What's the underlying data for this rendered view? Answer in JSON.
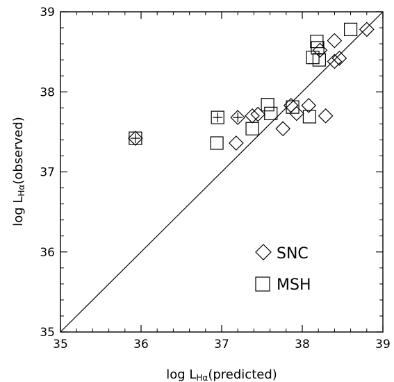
{
  "chart_data": {
    "type": "scatter",
    "title": "",
    "xlabel": {
      "prefix": "log L",
      "sub": "Hα",
      "suffix": "(predicted)"
    },
    "ylabel": {
      "prefix": "log L",
      "sub": "Hα",
      "suffix": "(observed)"
    },
    "xlim": [
      35,
      39
    ],
    "ylim": [
      35,
      39
    ],
    "x_ticks": [
      "35",
      "36",
      "37",
      "38",
      "39"
    ],
    "y_ticks": [
      "35",
      "36",
      "37",
      "38",
      "39"
    ],
    "reference_line": "y = x",
    "legend_placement": "lower-right",
    "series": [
      {
        "name": "SNC",
        "marker": "diamond",
        "points": [
          [
            35.93,
            37.42
          ],
          [
            37.2,
            37.68
          ],
          [
            37.38,
            37.7
          ],
          [
            37.45,
            37.72
          ],
          [
            37.18,
            37.36
          ],
          [
            37.76,
            37.54
          ],
          [
            37.86,
            37.83
          ],
          [
            37.93,
            37.73
          ],
          [
            38.08,
            37.83
          ],
          [
            38.29,
            37.7
          ],
          [
            38.22,
            38.52
          ],
          [
            38.4,
            38.38
          ],
          [
            38.46,
            38.42
          ],
          [
            38.4,
            38.64
          ],
          [
            38.8,
            38.78
          ]
        ]
      },
      {
        "name": "MSH",
        "marker": "square",
        "points": [
          [
            35.93,
            37.42
          ],
          [
            36.95,
            37.68
          ],
          [
            36.94,
            37.36
          ],
          [
            37.38,
            37.54
          ],
          [
            37.57,
            37.84
          ],
          [
            37.61,
            37.73
          ],
          [
            37.88,
            37.81
          ],
          [
            38.09,
            37.69
          ],
          [
            38.13,
            38.43
          ],
          [
            38.18,
            38.63
          ],
          [
            38.19,
            38.55
          ],
          [
            38.21,
            38.4
          ],
          [
            38.6,
            38.78
          ]
        ]
      }
    ],
    "crossed_points": [
      [
        35.93,
        37.42
      ],
      [
        36.95,
        37.68
      ],
      [
        37.2,
        37.68
      ]
    ]
  }
}
